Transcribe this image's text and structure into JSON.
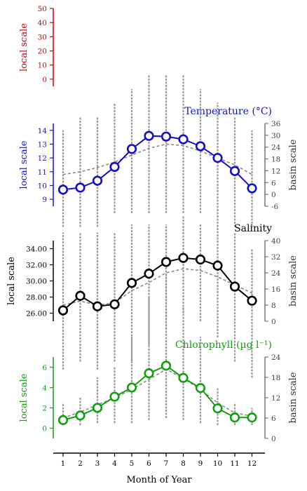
{
  "chart_data": [
    {
      "type": "line",
      "title": "",
      "ylabel_left": "local scale",
      "left_axis": {
        "ylim": [
          -5,
          50
        ],
        "ticks": [
          0,
          10,
          20,
          30,
          40,
          50
        ],
        "tick_labels": [
          "0",
          "10",
          "20",
          "30",
          "40",
          "50"
        ]
      },
      "color": "#d00000",
      "series": []
    },
    {
      "type": "line",
      "title": "Temperature (°C)",
      "ylabel_left": "local scale",
      "ylabel_right": "basin scale",
      "color": "#1010c8",
      "left_axis": {
        "ylim": [
          8.5,
          14.5
        ],
        "ticks": [
          9,
          10,
          11,
          12,
          13,
          14
        ],
        "tick_labels": [
          "9",
          "10",
          "11",
          "12",
          "13",
          "14"
        ]
      },
      "right_axis": {
        "ylim": [
          -6,
          36
        ],
        "ticks": [
          -6,
          0,
          6,
          12,
          18,
          24,
          30,
          36
        ],
        "tick_labels": [
          "-6",
          "0",
          "6",
          "12",
          "18",
          "24",
          "30",
          "36"
        ]
      },
      "x": [
        1,
        2,
        3,
        4,
        5,
        6,
        7,
        8,
        9,
        10,
        11,
        12
      ],
      "local_values": [
        9.7,
        9.85,
        10.35,
        11.35,
        12.65,
        13.6,
        13.55,
        13.35,
        12.85,
        12.0,
        11.05,
        9.8
      ],
      "basin_mean": [
        10.8,
        11.0,
        11.3,
        11.7,
        12.2,
        12.7,
        13.0,
        12.9,
        12.5,
        12.0,
        11.5,
        10.8
      ],
      "basin_range": [
        [
          7,
          14
        ],
        [
          7,
          15
        ],
        [
          7,
          15
        ],
        [
          8,
          16
        ],
        [
          8,
          17
        ],
        [
          8,
          18
        ],
        [
          8,
          18
        ],
        [
          8,
          18
        ],
        [
          8,
          17
        ],
        [
          7,
          16
        ],
        [
          7,
          15
        ],
        [
          7,
          14
        ]
      ]
    },
    {
      "type": "line",
      "title": "Salinity",
      "ylabel_left": "local scale",
      "ylabel_right": "basin scale",
      "color": "#000000",
      "left_axis": {
        "ylim": [
          25.0,
          35.0
        ],
        "ticks": [
          26.0,
          28.0,
          30.0,
          32.0,
          34.0
        ],
        "tick_labels": [
          "26.00",
          "28.00",
          "30.00",
          "32.00",
          "34.00"
        ]
      },
      "right_axis": {
        "ylim": [
          0,
          40
        ],
        "ticks": [
          0,
          8,
          16,
          24,
          32,
          40
        ],
        "tick_labels": [
          "0",
          "8",
          "16",
          "24",
          "32",
          "40"
        ]
      },
      "x": [
        1,
        2,
        3,
        4,
        5,
        6,
        7,
        8,
        9,
        10,
        11,
        12
      ],
      "local_values": [
        26.35,
        28.15,
        26.85,
        27.1,
        29.75,
        30.9,
        32.35,
        32.85,
        32.65,
        31.9,
        29.3,
        27.55
      ],
      "basin_mean": [
        27.0,
        27.5,
        27.0,
        27.3,
        28.8,
        29.8,
        31.0,
        31.5,
        31.3,
        30.5,
        29.5,
        28.5
      ],
      "basin_range": [
        [
          19,
          36
        ],
        [
          20,
          36
        ],
        [
          19,
          36
        ],
        [
          20,
          36
        ],
        [
          20,
          37
        ],
        [
          22,
          37
        ],
        [
          24,
          37
        ],
        [
          26,
          38
        ],
        [
          25,
          37
        ],
        [
          23,
          37
        ],
        [
          20,
          36
        ],
        [
          18,
          34
        ]
      ]
    },
    {
      "type": "line",
      "title": "Chlorophyll (µg l⁻¹)",
      "ylabel_left": "local scale",
      "ylabel_right": "basin scale",
      "xlabel": "Month of Year",
      "color": "#10a010",
      "left_axis": {
        "ylim": [
          -1.0,
          7.0
        ],
        "ticks": [
          0,
          2,
          4,
          6
        ],
        "tick_labels": [
          "0",
          "2",
          "4",
          "6"
        ]
      },
      "right_axis": {
        "ylim": [
          0,
          24
        ],
        "ticks": [
          0,
          6,
          12,
          18,
          24
        ],
        "tick_labels": [
          "0",
          "6",
          "12",
          "18",
          "24"
        ]
      },
      "x": [
        1,
        2,
        3,
        4,
        5,
        6,
        7,
        8,
        9,
        10,
        11,
        12
      ],
      "x_tick_labels": [
        "1",
        "2",
        "3",
        "4",
        "5",
        "6",
        "7",
        "8",
        "9",
        "10",
        "11",
        "12"
      ],
      "local_values": [
        0.8,
        1.25,
        2.0,
        3.1,
        4.0,
        5.4,
        6.15,
        4.95,
        3.95,
        1.95,
        1.05,
        1.05
      ],
      "basin_mean": [
        1.0,
        1.6,
        2.3,
        3.0,
        3.8,
        4.8,
        5.8,
        4.9,
        3.8,
        2.5,
        1.5,
        1.2
      ],
      "basin_range": [
        [
          0.3,
          2.5
        ],
        [
          0.3,
          3.0
        ],
        [
          0.5,
          5.0
        ],
        [
          0.5,
          6.0
        ],
        [
          0.5,
          9.0
        ],
        [
          0.8,
          13.0
        ],
        [
          1.0,
          15.0
        ],
        [
          0.8,
          12.0
        ],
        [
          0.5,
          9.0
        ],
        [
          0.3,
          4.0
        ],
        [
          0.3,
          2.5
        ],
        [
          0.3,
          2.0
        ]
      ]
    }
  ]
}
